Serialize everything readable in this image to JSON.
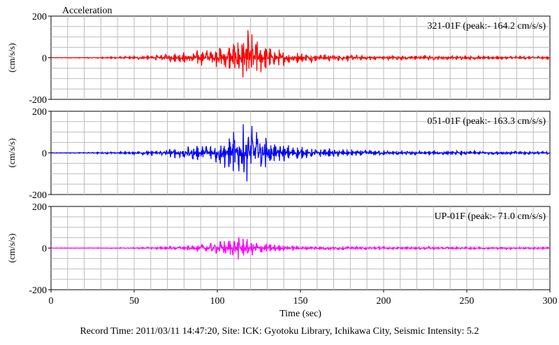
{
  "chart_data": {
    "type": "line",
    "title": "Acceleration",
    "xlabel": "Time (sec)",
    "ylabel": "(cm/s/s)",
    "xlim": [
      0,
      300
    ],
    "ylim": [
      -200,
      200
    ],
    "x_ticks": [
      0,
      50,
      100,
      150,
      200,
      250,
      300
    ],
    "y_ticks": [
      -200,
      0,
      200
    ],
    "grid": true,
    "series": [
      {
        "name": "321-01F",
        "label": "321-01F (peak:- 164.2 cm/s/s)",
        "color": "#ff0000",
        "envelope": {
          "t": [
            0,
            20,
            40,
            55,
            65,
            75,
            85,
            95,
            103,
            110,
            115,
            118,
            122,
            128,
            135,
            145,
            160,
            180,
            200,
            220,
            250,
            300
          ],
          "amp": [
            1,
            2,
            5,
            10,
            15,
            25,
            35,
            45,
            60,
            85,
            120,
            150,
            110,
            70,
            45,
            30,
            20,
            15,
            12,
            12,
            10,
            8
          ]
        }
      },
      {
        "name": "051-01F",
        "label": "051-01F (peak:- 163.3 cm/s/s)",
        "color": "#0000ff",
        "envelope": {
          "t": [
            0,
            20,
            40,
            55,
            65,
            75,
            85,
            95,
            103,
            110,
            115,
            118,
            122,
            128,
            135,
            145,
            160,
            180,
            200,
            220,
            250,
            300
          ],
          "amp": [
            1,
            2,
            5,
            10,
            15,
            25,
            35,
            45,
            70,
            110,
            140,
            160,
            120,
            85,
            55,
            35,
            22,
            18,
            14,
            12,
            10,
            8
          ]
        }
      },
      {
        "name": "UP-01F",
        "label": "UP-01F (peak:- 71.0 cm/s/s)",
        "color": "#ff00ff",
        "envelope": {
          "t": [
            0,
            20,
            40,
            55,
            65,
            75,
            85,
            95,
            103,
            108,
            112,
            118,
            125,
            135,
            145,
            160,
            180,
            200,
            250,
            300
          ],
          "amp": [
            1,
            1,
            2,
            4,
            6,
            10,
            15,
            25,
            40,
            55,
            60,
            45,
            30,
            18,
            12,
            10,
            8,
            7,
            6,
            5
          ]
        }
      }
    ]
  },
  "caption": "Record Time: 2011/03/11 14:47:20, Site: ICK: Gyotoku Library, Ichikawa City, Seismic Intensity: 5.2"
}
